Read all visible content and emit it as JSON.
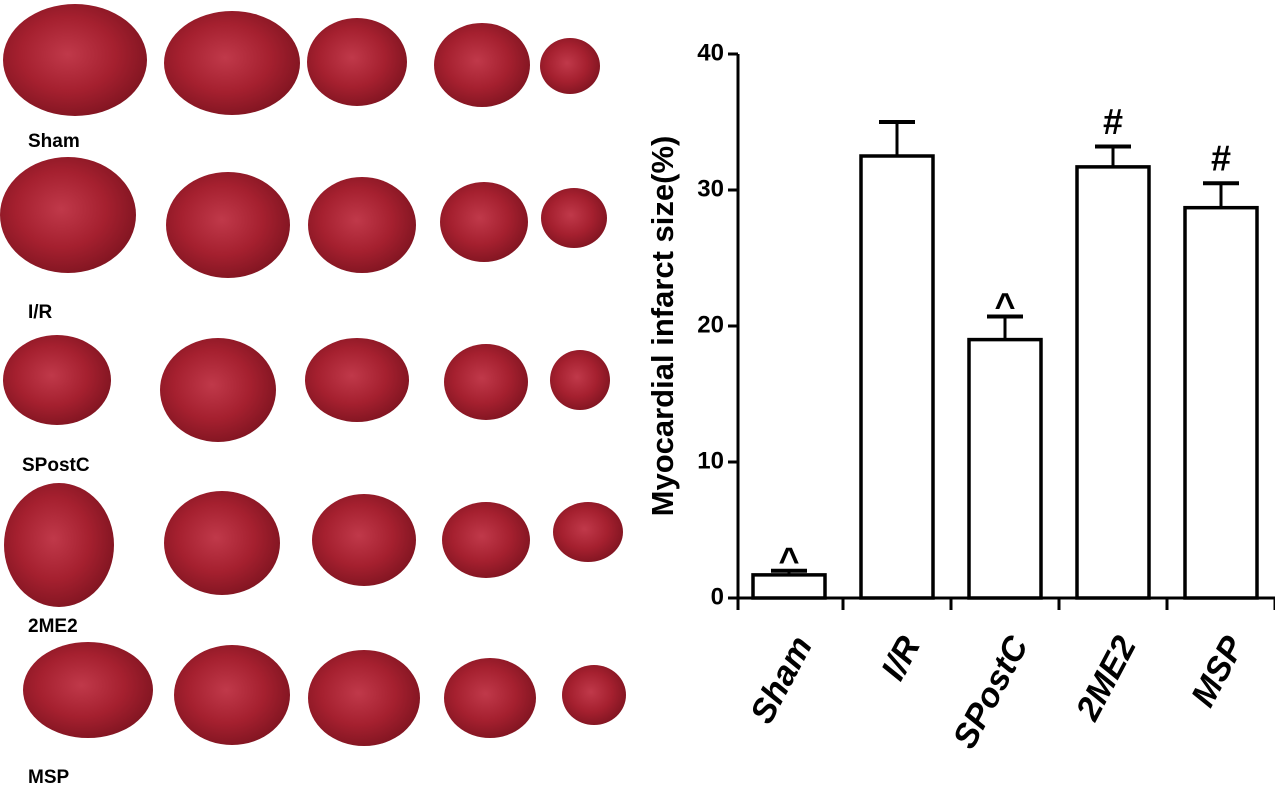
{
  "panel": {
    "row_labels": [
      "Sham",
      "I/R",
      "SPostC",
      "2ME2",
      "MSP"
    ]
  },
  "chart_data": {
    "type": "bar",
    "ylabel": "Myocardial infarct size(%)",
    "categories": [
      "Sham",
      "I/R",
      "SPostC",
      "2ME2",
      "MSP"
    ],
    "values": [
      1.7,
      32.5,
      19,
      31.7,
      28.7
    ],
    "errors": [
      0.3,
      2.5,
      1.7,
      1.5,
      1.8
    ],
    "annotations": [
      "^",
      null,
      "^",
      "#",
      "#"
    ],
    "color": "#ffffff",
    "ylim": [
      0,
      40
    ],
    "yticks": [
      0,
      10,
      20,
      30,
      40
    ]
  }
}
